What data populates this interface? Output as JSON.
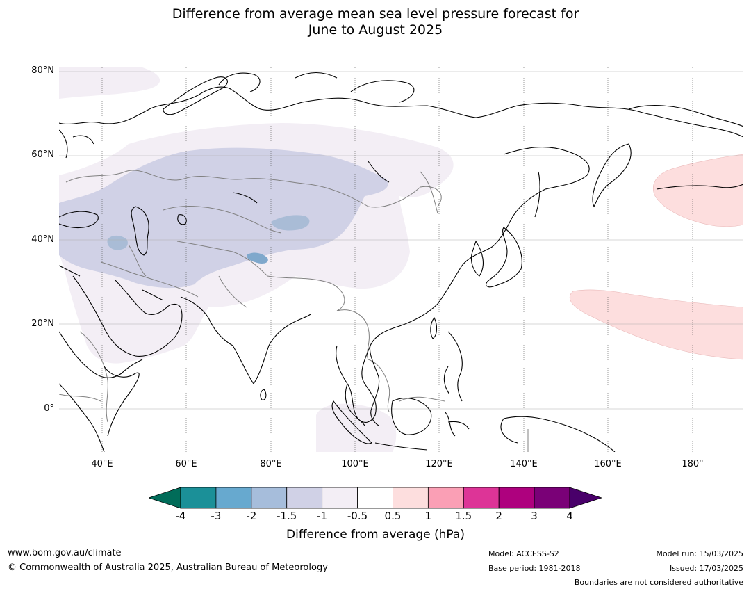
{
  "title": {
    "line1": "Difference from average mean sea level pressure forecast for",
    "line2": "June to August 2025"
  },
  "map": {
    "region": "Asia",
    "lat_labels": [
      "80°N",
      "60°N",
      "40°N",
      "20°N",
      "0°"
    ],
    "lon_labels": [
      "40°E",
      "60°E",
      "80°E",
      "100°E",
      "120°E",
      "140°E",
      "160°E",
      "180°"
    ],
    "lat_range": [
      -10,
      81
    ],
    "lon_range": [
      30,
      192
    ],
    "colors": {
      "coast": "#000000",
      "borders": "#808080",
      "very_light_purple": "#f3eef5",
      "light_purple": "#d0d1e6",
      "blue": "#a9bcd6",
      "light_pink": "#fddede"
    },
    "anomaly_regions": [
      {
        "name": "Central Asia low anomaly",
        "category": "-1.5 to -1"
      },
      {
        "name": "Broad Eurasian low anomaly",
        "category": "-1 to -0.5"
      },
      {
        "name": "North Pacific high anomaly",
        "category": "0.5 to 1"
      },
      {
        "name": "Western Pacific high anomaly",
        "category": "0.5 to 1"
      }
    ]
  },
  "colorbar": {
    "ticks": [
      "-4",
      "-3",
      "-2",
      "-1.5",
      "-1",
      "-0.5",
      "0.5",
      "1",
      "1.5",
      "2",
      "3",
      "4"
    ],
    "colors": [
      "#016c59",
      "#1b9098",
      "#67a9cf",
      "#a6bddb",
      "#d0d1e6",
      "#f3eef5",
      "#ffffff",
      "#fddede",
      "#fa9fb5",
      "#dd3497",
      "#ae017e",
      "#7a0177",
      "#49006a"
    ],
    "label": "Difference from average (hPa)"
  },
  "footer": {
    "url": "www.bom.gov.au/climate",
    "copyright": "© Commonwealth of Australia 2025, Australian Bureau of Meteorology",
    "model": "Model: ACCESS-S2",
    "base_period": "Base period: 1981-2018",
    "model_run": "Model run: 15/03/2025",
    "issued": "Issued: 17/03/2025",
    "disclaimer": "Boundaries are not considered authoritative"
  }
}
